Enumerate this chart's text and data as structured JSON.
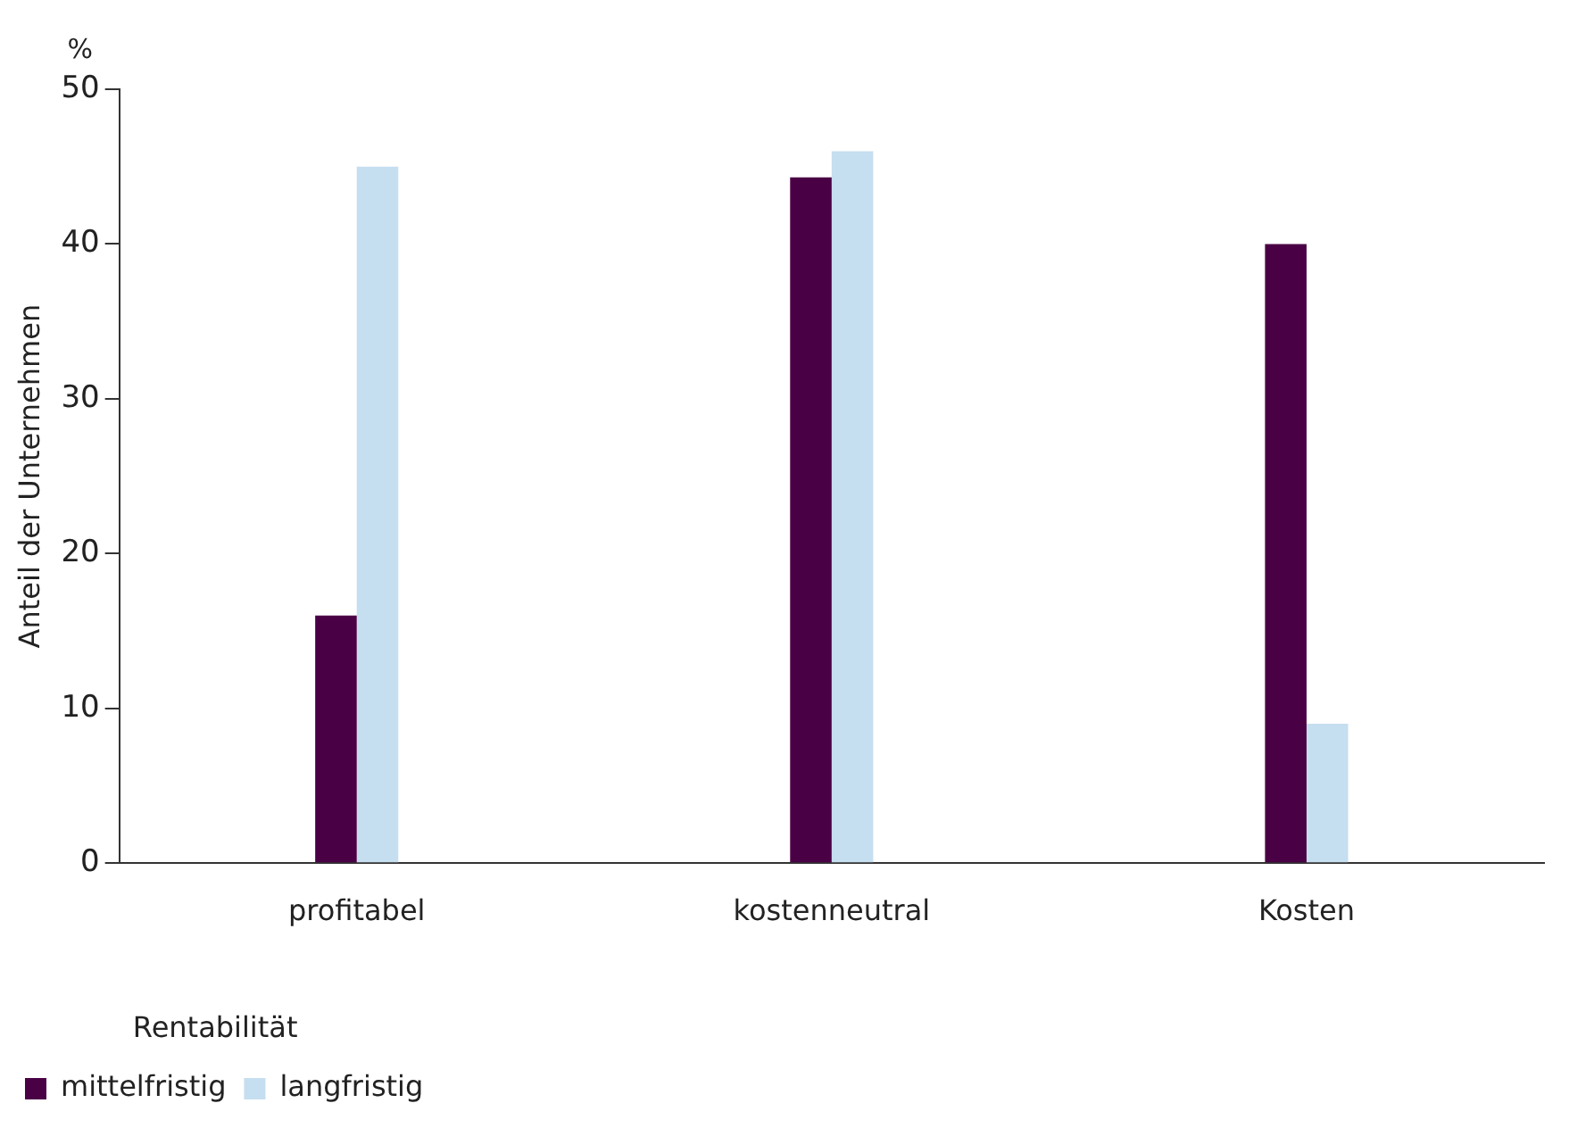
{
  "chart_data": {
    "type": "bar",
    "ylabel": "Anteil der Unternehmen",
    "legend_title": "Rentabilität",
    "annotations": [
      "%"
    ],
    "categories": [
      "profitabel",
      "kostenneutral",
      "Kosten"
    ],
    "series": [
      {
        "name": "mittelfristig",
        "color": "#4a0045",
        "values": [
          16,
          44.3,
          40
        ]
      },
      {
        "name": "langfristig",
        "color": "#c5def0",
        "values": [
          45,
          46,
          9
        ]
      }
    ],
    "ylim": [
      0,
      50
    ],
    "yticks": [
      0,
      10,
      20,
      30,
      40,
      50
    ],
    "grid": false,
    "legend": "bottom left"
  }
}
